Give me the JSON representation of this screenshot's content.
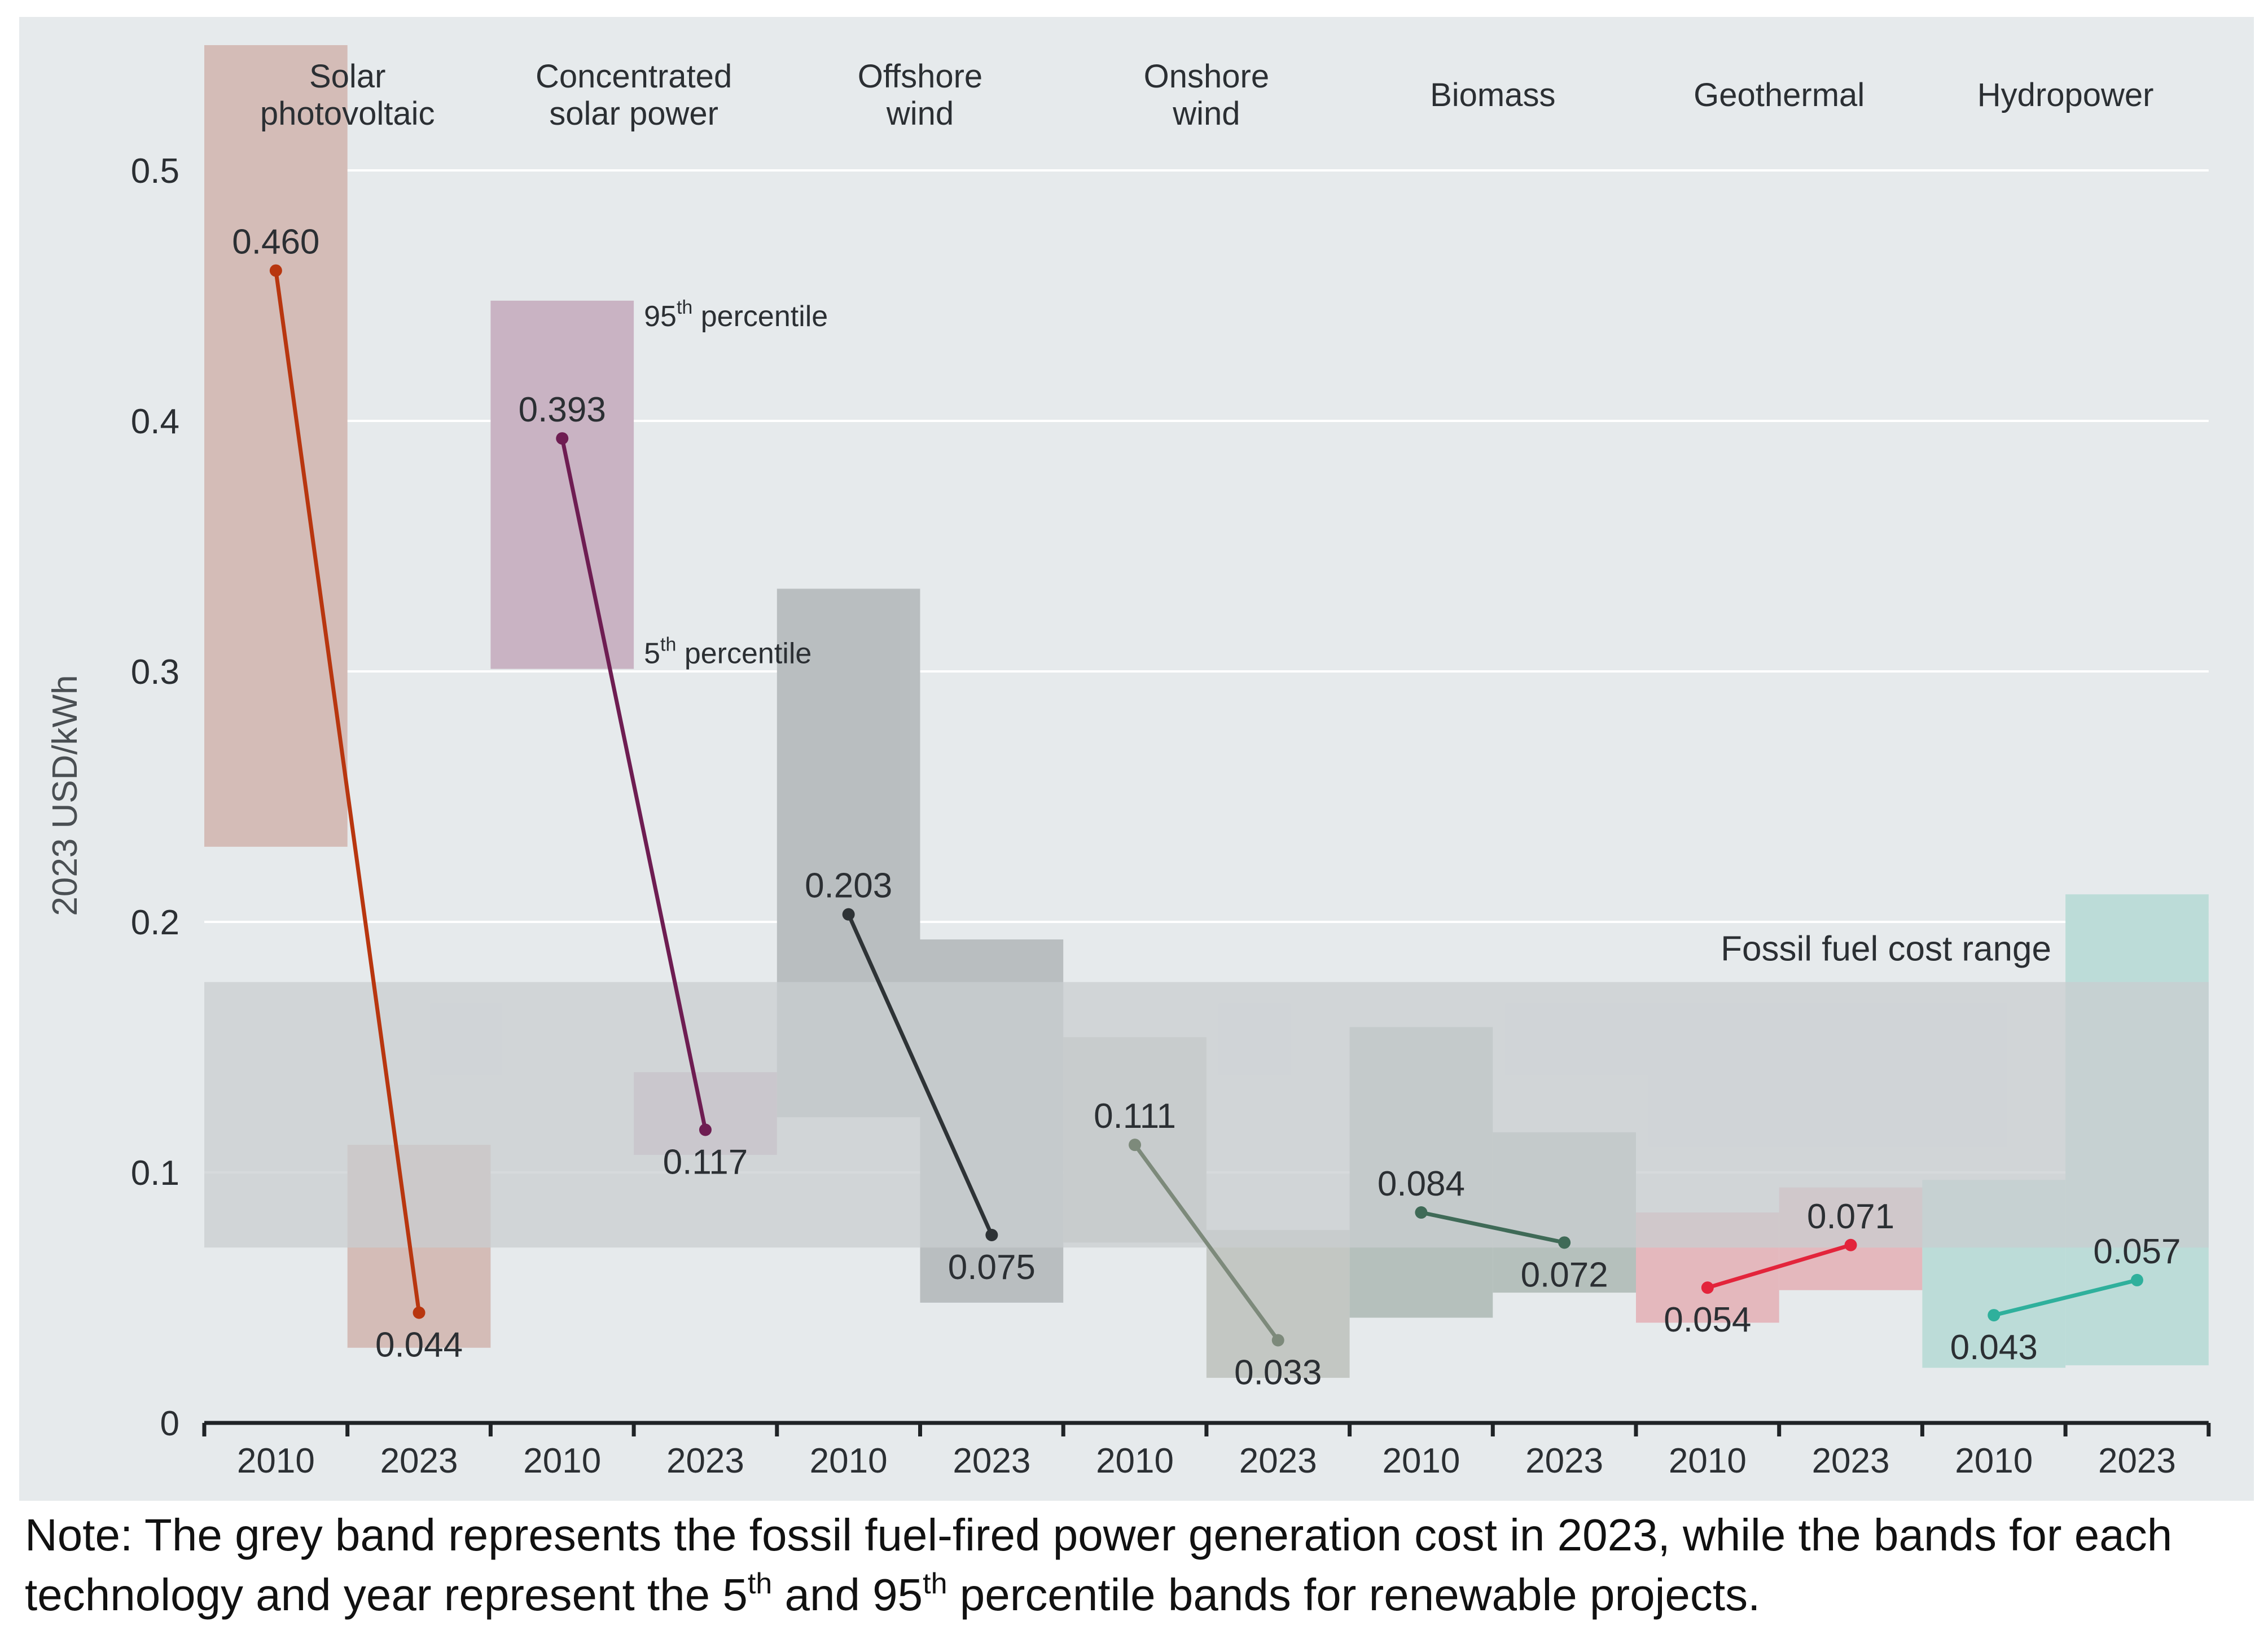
{
  "chart_data": {
    "type": "range-bar-line",
    "ylabel": "2023 USD/kWh",
    "ylim": [
      0,
      0.55
    ],
    "yticks": [
      {
        "v": 0,
        "label": "0"
      },
      {
        "v": 0.1,
        "label": "0.1"
      },
      {
        "v": 0.2,
        "label": "0.2"
      },
      {
        "v": 0.3,
        "label": "0.3"
      },
      {
        "v": 0.4,
        "label": "0.4"
      },
      {
        "v": 0.5,
        "label": "0.5"
      }
    ],
    "fossil_band": {
      "label": "Fossil fuel cost range",
      "low": 0.07,
      "high": 0.176,
      "color": "#c9cdd0"
    },
    "percentile_labels": {
      "p95_num": "95",
      "p95_sup": "th",
      "p95_text": " percentile",
      "p5_num": "5",
      "p5_sup": "th",
      "p5_text": " percentile"
    },
    "technologies": [
      {
        "name_lines": [
          "Solar",
          "photovoltaic"
        ],
        "color": "#b8360f",
        "band_color": "#d4bcb7",
        "years": [
          {
            "year": "2010",
            "value": 0.46,
            "label": "0.460",
            "p5": 0.23,
            "p95": 0.55
          },
          {
            "year": "2023",
            "value": 0.044,
            "label": "0.044",
            "p5": 0.03,
            "p95": 0.111
          }
        ]
      },
      {
        "name_lines": [
          "Concentrated",
          "solar power"
        ],
        "color": "#6e1d52",
        "band_color": "#c9b3c3",
        "years": [
          {
            "year": "2010",
            "value": 0.393,
            "label": "0.393",
            "p5": 0.301,
            "p95": 0.448
          },
          {
            "year": "2023",
            "value": 0.117,
            "label": "0.117",
            "p5": 0.107,
            "p95": 0.14
          }
        ]
      },
      {
        "name_lines": [
          "Offshore",
          "wind"
        ],
        "color": "#2e3336",
        "band_color": "#b9bec0",
        "years": [
          {
            "year": "2010",
            "value": 0.203,
            "label": "0.203",
            "p5": 0.122,
            "p95": 0.333
          },
          {
            "year": "2023",
            "value": 0.075,
            "label": "0.075",
            "p5": 0.048,
            "p95": 0.193
          }
        ]
      },
      {
        "name_lines": [
          "Onshore",
          "wind"
        ],
        "color": "#7d8a7b",
        "band_color": "#c3c7c3",
        "years": [
          {
            "year": "2010",
            "value": 0.111,
            "label": "0.111",
            "p5": 0.072,
            "p95": 0.154
          },
          {
            "year": "2023",
            "value": 0.033,
            "label": "0.033",
            "p5": 0.018,
            "p95": 0.077
          }
        ]
      },
      {
        "name_lines": [
          "Biomass"
        ],
        "color": "#3f6a57",
        "band_color": "#b5c0bc",
        "years": [
          {
            "year": "2010",
            "value": 0.084,
            "label": "0.084",
            "p5": 0.042,
            "p95": 0.158
          },
          {
            "year": "2023",
            "value": 0.072,
            "label": "0.072",
            "p5": 0.052,
            "p95": 0.116
          }
        ]
      },
      {
        "name_lines": [
          "Geothermal"
        ],
        "color": "#e3243b",
        "band_color": "#e4b8bd",
        "years": [
          {
            "year": "2010",
            "value": 0.054,
            "label": "0.054",
            "p5": 0.04,
            "p95": 0.084
          },
          {
            "year": "2023",
            "value": 0.071,
            "label": "0.071",
            "p5": 0.053,
            "p95": 0.094
          }
        ]
      },
      {
        "name_lines": [
          "Hydropower"
        ],
        "color": "#2fb09c",
        "band_color": "#bcdcd8",
        "years": [
          {
            "year": "2010",
            "value": 0.043,
            "label": "0.043",
            "p5": 0.022,
            "p95": 0.097
          },
          {
            "year": "2023",
            "value": 0.057,
            "label": "0.057",
            "p5": 0.023,
            "p95": 0.211
          }
        ]
      }
    ]
  },
  "note": {
    "part1": "Note: The grey band represents the fossil fuel-fired power generation cost in 2023, while the bands for each technology and year represent the 5",
    "sup1": "th",
    "part2": " and 95",
    "sup2": "th",
    "part3": " percentile bands for renewable projects."
  }
}
